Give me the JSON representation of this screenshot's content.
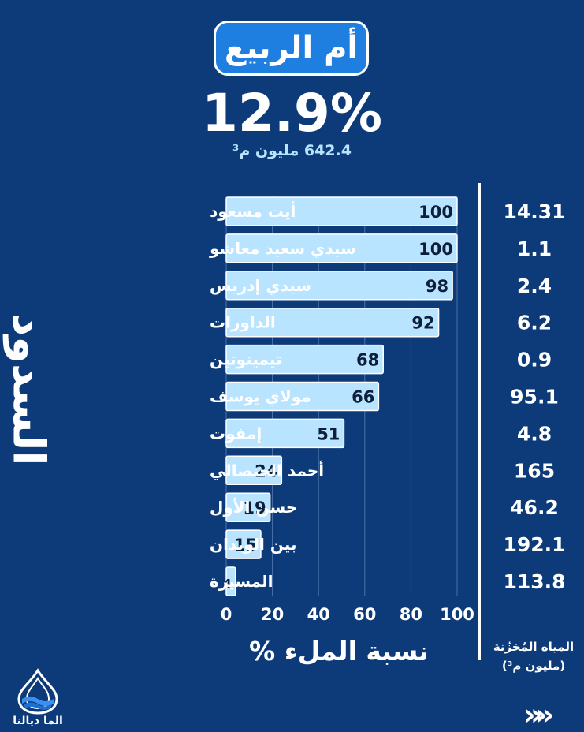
{
  "header": {
    "basin": "أم الربيع",
    "fill_rate": "12.9%",
    "volume": "642.4 مليون م³"
  },
  "side_title": "السدود",
  "x_title": "نسبة الملء %",
  "stored_label_line1": "المياه المُخزّنة",
  "stored_label_line2": "(مليون م³)",
  "logo": {
    "text": "الما ديالنا",
    "icon": "water-drop-icon"
  },
  "nav": {
    "icon": "double-chevron-icon",
    "glyph": "»»"
  },
  "colors": {
    "background": "#0d3a78",
    "bar": "#b9e4ff",
    "accent": "#1f7fe0"
  },
  "chart_data": {
    "type": "bar",
    "orientation": "horizontal",
    "categories": [
      "أيت مسعود",
      "سيدي سعيد معاشو",
      "سيدي إدريس",
      "الداورات",
      "تيمينوتين",
      "مولاي يوسف",
      "إمفوت",
      "أحمد الحنصالي",
      "حسن الأول",
      "بين الويدان",
      "المسيرة"
    ],
    "values": [
      100,
      100,
      98,
      92,
      68,
      66,
      51,
      24,
      19,
      15,
      4
    ],
    "stored_volumes": [
      "14.31",
      "1.1",
      "2.4",
      "6.2",
      "0.9",
      "95.1",
      "4.8",
      "165",
      "46.2",
      "192.1",
      "113.8"
    ],
    "xlim": [
      0,
      100
    ],
    "xticks": [
      0,
      20,
      40,
      60,
      80,
      100
    ],
    "grid": true
  }
}
